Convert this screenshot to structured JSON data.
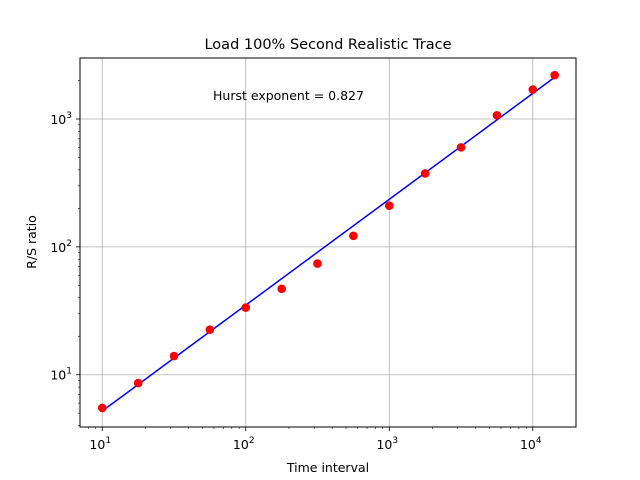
{
  "chart_data": {
    "type": "scatter",
    "title": "Load 100% Second Realistic Trace",
    "xlabel": "Time interval",
    "ylabel": "R/S ratio",
    "xscale": "log",
    "yscale": "log",
    "xlim": [
      7,
      20000
    ],
    "ylim": [
      3.9,
      3000
    ],
    "grid": true,
    "annotation": "Hurst exponent = 0.827",
    "x_ticks": [
      {
        "value": 10,
        "base": "10",
        "exp": "1"
      },
      {
        "value": 100,
        "base": "10",
        "exp": "2"
      },
      {
        "value": 1000,
        "base": "10",
        "exp": "3"
      },
      {
        "value": 10000,
        "base": "10",
        "exp": "4"
      }
    ],
    "y_ticks": [
      {
        "value": 10,
        "base": "10",
        "exp": "1"
      },
      {
        "value": 100,
        "base": "10",
        "exp": "2"
      },
      {
        "value": 1000,
        "base": "10",
        "exp": "3"
      }
    ],
    "series": [
      {
        "type": "scatter",
        "color": "#ff0000",
        "x": [
          10,
          17.8,
          31.6,
          56.2,
          100,
          178,
          316,
          562,
          1000,
          1778,
          3162,
          5623,
          10000,
          14200
        ],
        "y": [
          5.5,
          8.6,
          14.0,
          22.5,
          33.5,
          47.0,
          74.0,
          122.0,
          210.0,
          375.0,
          600.0,
          1070.0,
          1700.0,
          2200.0
        ]
      },
      {
        "type": "line",
        "color": "#0000ff",
        "x": [
          10,
          14200
        ],
        "y": [
          5.2,
          2120.0
        ]
      }
    ]
  }
}
